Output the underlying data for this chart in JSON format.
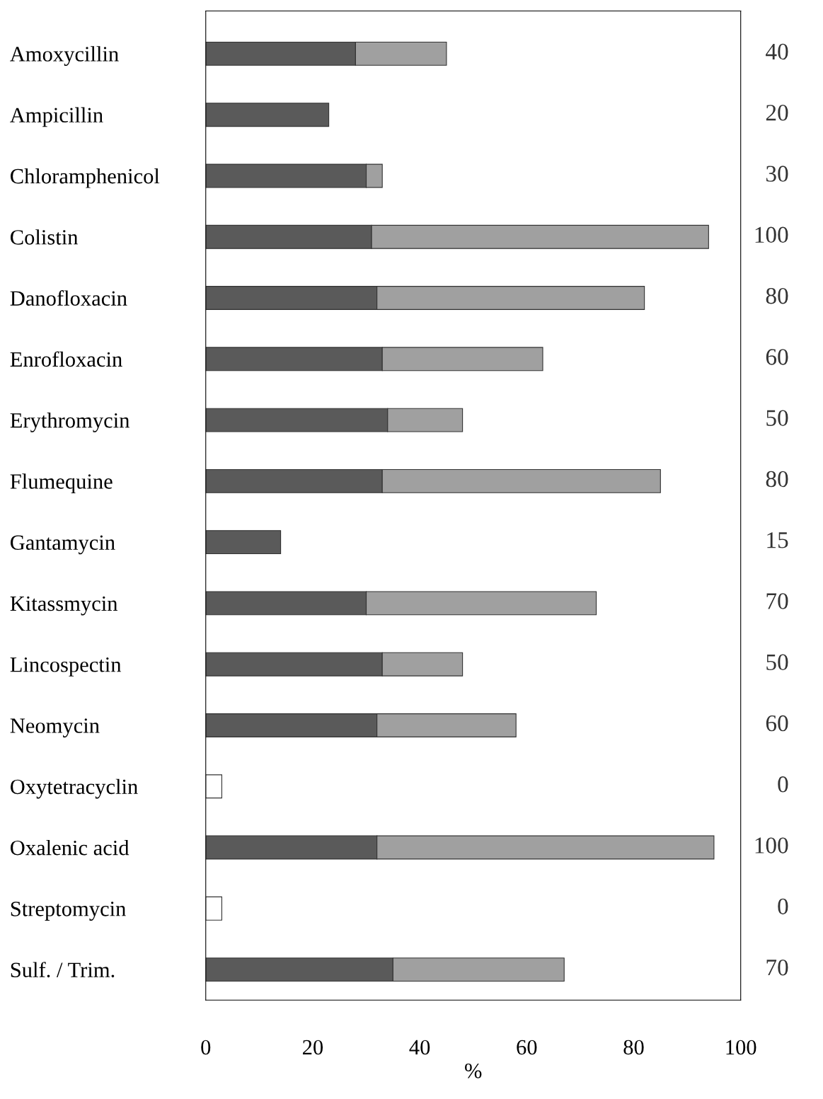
{
  "chart_data": {
    "type": "bar",
    "orientation": "horizontal",
    "stacked": true,
    "xlabel": "%",
    "categories": [
      "Amoxycillin",
      "Ampicillin",
      "Chloramphenicol",
      "Colistin",
      "Danofloxacin",
      "Enrofloxacin",
      "Erythromycin",
      "Flumequine",
      "Gantamycin",
      "Kitassmycin",
      "Lincospectin",
      "Neomycin",
      "Oxytetracyclin",
      "Oxalenic acid",
      "Streptomycin",
      "Sulf. / Trim."
    ],
    "series": [
      {
        "color": "#5a5a5a",
        "values": [
          28,
          23,
          30,
          31,
          32,
          33,
          34,
          33,
          14,
          30,
          33,
          32,
          null,
          32,
          null,
          35
        ]
      },
      {
        "color": "#a0a0a0",
        "values": [
          17,
          null,
          3,
          63,
          50,
          30,
          14,
          52,
          null,
          43,
          15,
          26,
          null,
          63,
          null,
          32
        ]
      },
      {
        "color": "#ffffff",
        "values": [
          null,
          null,
          null,
          null,
          null,
          null,
          null,
          null,
          null,
          null,
          null,
          null,
          3,
          null,
          3,
          null
        ]
      }
    ],
    "annotations": [
      "40",
      "20",
      "30",
      "100",
      "80",
      "60",
      "50",
      "80",
      "15",
      "70",
      "50",
      "60",
      "0",
      "100",
      "0",
      "70"
    ],
    "xlim": [
      0,
      100
    ],
    "xticks": [
      0,
      20,
      40,
      60,
      80,
      100
    ],
    "grid": false,
    "legend": false
  }
}
